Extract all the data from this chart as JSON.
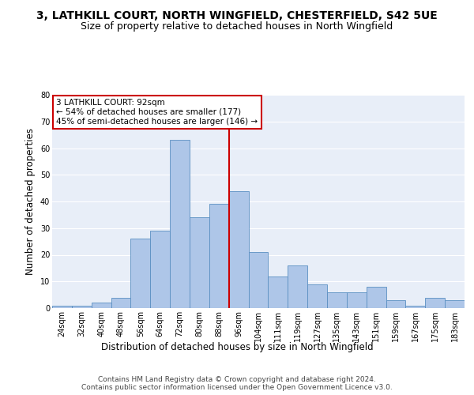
{
  "title": "3, LATHKILL COURT, NORTH WINGFIELD, CHESTERFIELD, S42 5UE",
  "subtitle": "Size of property relative to detached houses in North Wingfield",
  "xlabel": "Distribution of detached houses by size in North Wingfield",
  "ylabel": "Number of detached properties",
  "footer": "Contains HM Land Registry data © Crown copyright and database right 2024.\nContains public sector information licensed under the Open Government Licence v3.0.",
  "categories": [
    "24sqm",
    "32sqm",
    "40sqm",
    "48sqm",
    "56sqm",
    "64sqm",
    "72sqm",
    "80sqm",
    "88sqm",
    "96sqm",
    "104sqm",
    "111sqm",
    "119sqm",
    "127sqm",
    "135sqm",
    "143sqm",
    "151sqm",
    "159sqm",
    "167sqm",
    "175sqm",
    "183sqm"
  ],
  "values": [
    1,
    1,
    2,
    4,
    26,
    29,
    63,
    34,
    39,
    44,
    21,
    12,
    16,
    9,
    6,
    6,
    8,
    3,
    1,
    4,
    3
  ],
  "bar_color": "#aec6e8",
  "bar_edge_color": "#5a8fc2",
  "vline_color": "#cc0000",
  "annotation_text": "3 LATHKILL COURT: 92sqm\n← 54% of detached houses are smaller (177)\n45% of semi-detached houses are larger (146) →",
  "annotation_box_color": "#cc0000",
  "ylim": [
    0,
    80
  ],
  "yticks": [
    0,
    10,
    20,
    30,
    40,
    50,
    60,
    70,
    80
  ],
  "plot_bg_color": "#e8eef8",
  "grid_color": "#ffffff",
  "title_fontsize": 10,
  "subtitle_fontsize": 9,
  "axis_label_fontsize": 8.5,
  "tick_fontsize": 7,
  "footer_fontsize": 6.5,
  "vline_pos": 8.5
}
